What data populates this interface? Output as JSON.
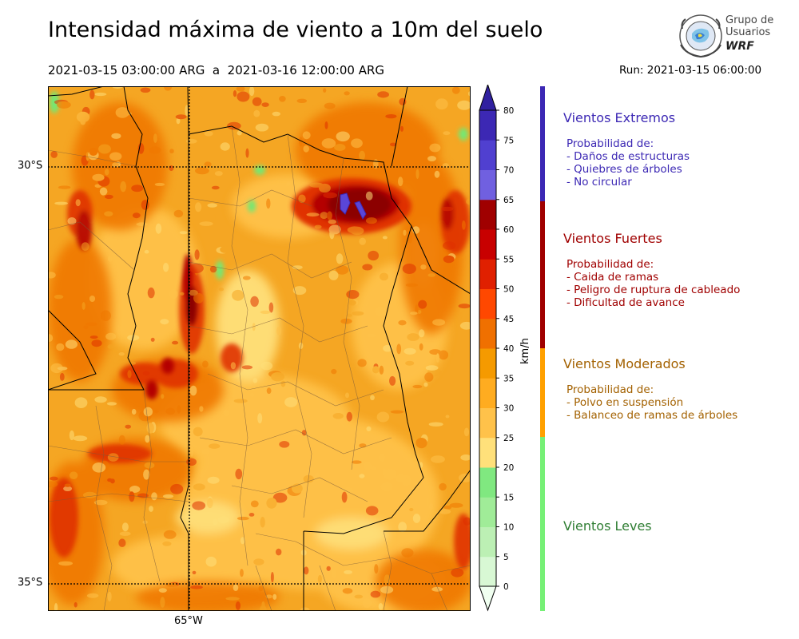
{
  "header": {
    "title": "Intensidad máxima de viento a 10m del suelo",
    "period": "2021-03-15 03:00:00 ARG  a  2021-03-16 12:00:00 ARG",
    "run": "Run: 2021-03-15 06:00:00"
  },
  "logo": {
    "line1": "Grupo de",
    "line2": "Usuarios",
    "line3": "WRF",
    "icon": "globe-icon"
  },
  "map": {
    "lat_labels": [
      "30°S",
      "35°S"
    ],
    "lon_labels": [
      "65°W"
    ],
    "hotspot_colors": {
      "background": "#f5a623",
      "light": "#ffc24a",
      "pale": "#ffe07a",
      "orange": "#f07800",
      "red": "#e03000",
      "darkred": "#b40000",
      "maroon": "#8c0000",
      "violet": "#5a46d8",
      "green": "#73e873"
    }
  },
  "colorbar": {
    "unit": "km/h",
    "ticks": [
      "0",
      "5",
      "10",
      "15",
      "20",
      "25",
      "30",
      "35",
      "40",
      "45",
      "50",
      "55",
      "60",
      "65",
      "70",
      "75",
      "80"
    ],
    "colors": [
      "#f0fff0",
      "#d8f8d4",
      "#bcf0b4",
      "#a0ec98",
      "#80e880",
      "#ffe07a",
      "#ffc24a",
      "#ffac20",
      "#f59a00",
      "#f07000",
      "#ff4800",
      "#e02000",
      "#c80000",
      "#a00000",
      "#7060e0",
      "#5040d0",
      "#3c28b4",
      "#3020a0"
    ]
  },
  "legend": [
    {
      "title": "Vientos Extremos",
      "color": "#3c28b4",
      "lines": [
        "Probabilidad de:",
        "- Daños de estructuras",
        "- Quiebres de árboles",
        "- No circular"
      ]
    },
    {
      "title": "Vientos Fuertes",
      "color": "#a00000",
      "lines": [
        "Probabilidad de:",
        "- Caida de ramas",
        "- Peligro de ruptura de cableado",
        "- Dificultad de avance"
      ]
    },
    {
      "title": "Vientos Moderados",
      "color": "#a36100",
      "lines": [
        "Probabilidad de:",
        "- Polvo en suspensión",
        "- Balanceo de ramas de árboles"
      ]
    },
    {
      "title": "Vientos Leves",
      "color": "#2e7d32",
      "lines": []
    }
  ],
  "level_bar": [
    {
      "color": "#3c28b4"
    },
    {
      "color": "#a00000"
    },
    {
      "color": "#ffa000"
    },
    {
      "color": "#76f076"
    }
  ]
}
